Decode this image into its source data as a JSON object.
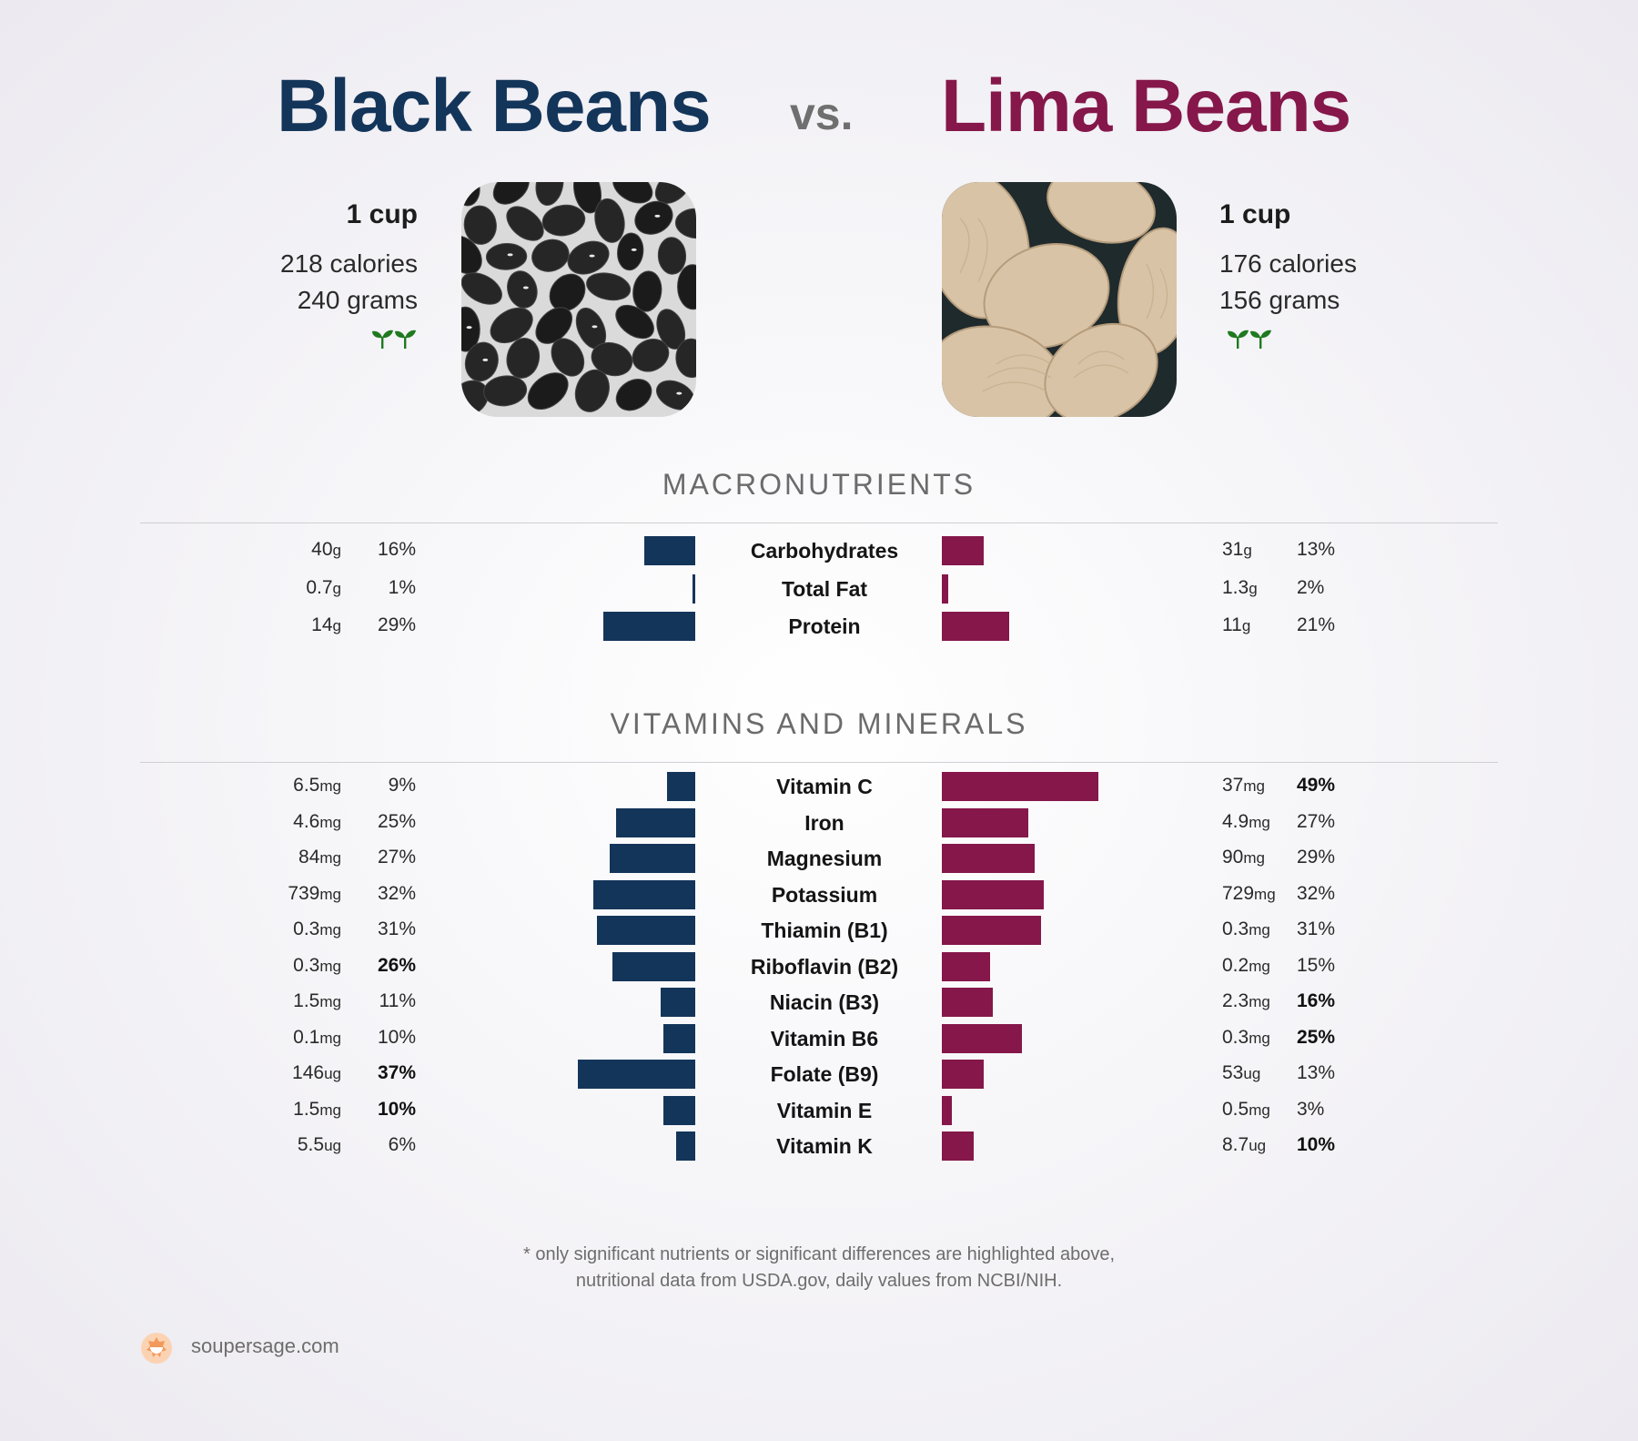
{
  "header": {
    "left_title": "Black Beans",
    "vs": "vs.",
    "right_title": "Lima Beans",
    "left_color": "#14355a",
    "right_color": "#85174a"
  },
  "left_food": {
    "serving": "1 cup",
    "calories": "218 calories",
    "weight": "240 grams",
    "icon": "sprout-icon"
  },
  "right_food": {
    "serving": "1 cup",
    "calories": "176 calories",
    "weight": "156 grams",
    "icon": "sprout-icon"
  },
  "sections": {
    "macros_title": "MACRONUTRIENTS",
    "vitamins_title": "VITAMINS AND MINERALS"
  },
  "chart_data": [
    {
      "type": "bar",
      "title": "MACRONUTRIENTS",
      "categories": [
        "Carbohydrates",
        "Total Fat",
        "Protein"
      ],
      "series": [
        {
          "name": "Black Beans",
          "amounts": [
            "40",
            "0.7",
            "14"
          ],
          "units": [
            "g",
            "g",
            "g"
          ],
          "values": [
            16,
            1,
            29
          ],
          "bold": [
            false,
            false,
            false
          ]
        },
        {
          "name": "Lima Beans",
          "amounts": [
            "31",
            "1.3",
            "11"
          ],
          "units": [
            "g",
            "g",
            "g"
          ],
          "values": [
            13,
            2,
            21
          ],
          "bold": [
            false,
            false,
            false
          ]
        }
      ]
    },
    {
      "type": "bar",
      "title": "VITAMINS AND MINERALS",
      "categories": [
        "Vitamin C",
        "Iron",
        "Magnesium",
        "Potassium",
        "Thiamin (B1)",
        "Riboflavin (B2)",
        "Niacin (B3)",
        "Vitamin B6",
        "Folate (B9)",
        "Vitamin E",
        "Vitamin K"
      ],
      "series": [
        {
          "name": "Black Beans",
          "amounts": [
            "6.5",
            "4.6",
            "84",
            "739",
            "0.3",
            "0.3",
            "1.5",
            "0.1",
            "146",
            "1.5",
            "5.5"
          ],
          "units": [
            "mg",
            "mg",
            "mg",
            "mg",
            "mg",
            "mg",
            "mg",
            "mg",
            "ug",
            "mg",
            "ug"
          ],
          "values": [
            9,
            25,
            27,
            32,
            31,
            26,
            11,
            10,
            37,
            10,
            6
          ],
          "bold": [
            false,
            false,
            false,
            false,
            false,
            true,
            false,
            false,
            true,
            true,
            false
          ]
        },
        {
          "name": "Lima Beans",
          "amounts": [
            "37",
            "4.9",
            "90",
            "729",
            "0.3",
            "0.2",
            "2.3",
            "0.3",
            "53",
            "0.5",
            "8.7"
          ],
          "units": [
            "mg",
            "mg",
            "mg",
            "mg",
            "mg",
            "mg",
            "mg",
            "mg",
            "ug",
            "mg",
            "ug"
          ],
          "values": [
            49,
            27,
            29,
            32,
            31,
            15,
            16,
            25,
            13,
            3,
            10
          ],
          "bold": [
            true,
            false,
            false,
            false,
            false,
            false,
            true,
            true,
            false,
            false,
            true
          ]
        }
      ]
    }
  ],
  "footer": {
    "note_line1": "* only significant nutrients or significant differences are highlighted above,",
    "note_line2": "nutritional data from USDA.gov, daily values from NCBI/NIH.",
    "brand": "soupersage.com",
    "logo_icon": "soupersage-logo-icon"
  }
}
